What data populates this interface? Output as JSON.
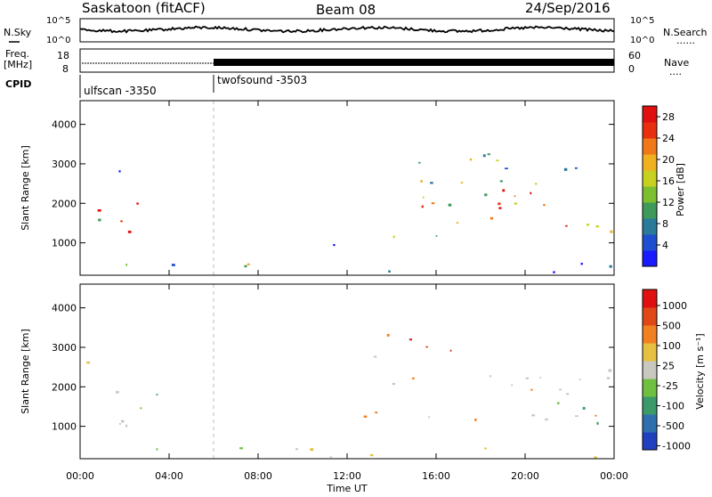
{
  "header": {
    "station": "Saskatoon (fitACF)",
    "beam": "Beam 08",
    "date": "24/Sep/2016"
  },
  "noise_panel": {
    "left_label": "N.Sky",
    "right_label": "N.Search",
    "right_marker": "......",
    "ticks": [
      "10^5",
      "10^0"
    ]
  },
  "freq_panel": {
    "left_label_line1": "Freq.",
    "left_label_line2": "[MHz]",
    "left_ticks": [
      "18",
      "8"
    ],
    "right_label": "Nave",
    "right_marker": "....",
    "right_ticks": [
      "60",
      "0"
    ]
  },
  "cpid": {
    "label": "CPID",
    "segments": [
      {
        "name": "ulfscan -3350",
        "start_hour": 0
      },
      {
        "name": "twofsound -3503",
        "start_hour": 6
      }
    ]
  },
  "chart_data": [
    {
      "type": "heatmap",
      "title": "Power",
      "x_axis": {
        "label": "Time UT",
        "range_hours": [
          0,
          24
        ],
        "ticks": [
          "00:00",
          "04:00",
          "08:00",
          "12:00",
          "16:00",
          "20:00",
          "00:00"
        ]
      },
      "y_axis": {
        "label": "Slant Range [km]",
        "range": [
          180,
          4600
        ],
        "ticks": [
          1000,
          2000,
          3000,
          4000
        ]
      },
      "colorbar": {
        "label": "Power [dB]",
        "ticks": [
          "4",
          "8",
          "12",
          "16",
          "20",
          "24",
          "28"
        ],
        "range": [
          0,
          30
        ],
        "colors": [
          "#1a1aff",
          "#1e4fd0",
          "#2a7a9a",
          "#3f9a5a",
          "#7cc030",
          "#c8d020",
          "#f0b020",
          "#f07818",
          "#e83010",
          "#e01010"
        ]
      }
    },
    {
      "type": "heatmap",
      "title": "Velocity",
      "x_axis": {
        "label": "Time UT",
        "range_hours": [
          0,
          24
        ],
        "ticks": [
          "00:00",
          "04:00",
          "08:00",
          "12:00",
          "16:00",
          "20:00",
          "00:00"
        ]
      },
      "y_axis": {
        "label": "Slant Range [km]",
        "range": [
          180,
          4600
        ],
        "ticks": [
          1000,
          2000,
          3000,
          4000
        ]
      },
      "colorbar": {
        "label": "Velocity [m s⁻¹]",
        "ticks": [
          "1000",
          "500",
          "100",
          "25",
          "-25",
          "-100",
          "-500",
          "-1000"
        ],
        "colors": [
          "#2040c0",
          "#2f6fae",
          "#3a9a6a",
          "#6fc040",
          "#c8c8c0",
          "#e8c040",
          "#f08020",
          "#e04818",
          "#e01010"
        ]
      }
    }
  ],
  "x_axis_title": "Time UT"
}
